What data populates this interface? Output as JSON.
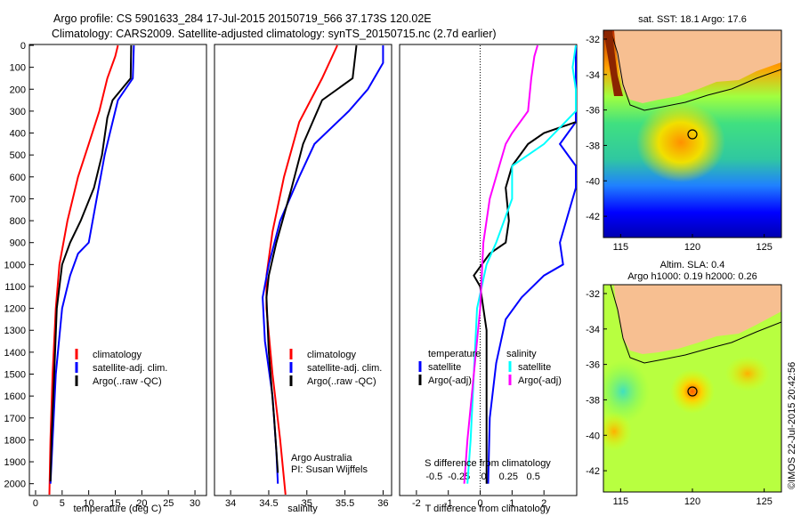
{
  "header": {
    "line1": "Argo profile: CS 5901633_284 17-Jul-2015 20150719_566 37.173S 120.02E",
    "line2": "Climatology: CARS2009. Satellite-adjusted climatology: synTS_20150715.nc (2.7d earlier)"
  },
  "credit": "©IMOS 22-Jul-2015 20:42:56",
  "colors": {
    "climatology": "#ff0000",
    "satellite": "#0000ff",
    "argo": "#000000",
    "sal_sat": "#00ffff",
    "sal_argo": "#ff00ff",
    "land": "#f7bf91"
  },
  "chart_data": [
    {
      "type": "line",
      "name": "temperature-profile",
      "xlabel": "temperature (deg C)",
      "ylim": [
        2050,
        0
      ],
      "xlim": [
        -1,
        32
      ],
      "xticks": [
        "0",
        "5",
        "10",
        "15",
        "20",
        "25",
        "30"
      ],
      "yticks": [
        "0",
        "100",
        "200",
        "300",
        "400",
        "500",
        "600",
        "700",
        "800",
        "900",
        "1000",
        "1100",
        "1200",
        "1300",
        "1400",
        "1500",
        "1600",
        "1700",
        "1800",
        "1900",
        "2000"
      ],
      "legend": {
        "position": "lower-center",
        "entries": [
          "climatology",
          "satellite-adj. clim.",
          "Argo(..raw -QC)"
        ]
      },
      "series": [
        {
          "name": "climatology",
          "color": "#ff0000",
          "points": [
            [
              15.5,
              0
            ],
            [
              15.0,
              50
            ],
            [
              13.5,
              150
            ],
            [
              12.0,
              300
            ],
            [
              10.0,
              450
            ],
            [
              8.0,
              600
            ],
            [
              6.0,
              800
            ],
            [
              4.5,
              1000
            ],
            [
              3.8,
              1200
            ],
            [
              3.2,
              1500
            ],
            [
              2.8,
              1800
            ],
            [
              2.6,
              2050
            ]
          ]
        },
        {
          "name": "satellite-adj. clim.",
          "color": "#0000ff",
          "points": [
            [
              18.5,
              0
            ],
            [
              18.3,
              150
            ],
            [
              15.5,
              250
            ],
            [
              14.0,
              400
            ],
            [
              13.0,
              500
            ],
            [
              11.5,
              700
            ],
            [
              10.0,
              900
            ],
            [
              8.0,
              950
            ],
            [
              6.5,
              1050
            ],
            [
              5.0,
              1200
            ],
            [
              3.8,
              1500
            ],
            [
              3.2,
              1800
            ],
            [
              2.8,
              2000
            ]
          ]
        },
        {
          "name": "Argo(..raw -QC)",
          "color": "#000000",
          "points": [
            [
              18.0,
              0
            ],
            [
              17.9,
              150
            ],
            [
              14.5,
              250
            ],
            [
              13.5,
              330
            ],
            [
              12.5,
              500
            ],
            [
              11.0,
              650
            ],
            [
              8.5,
              800
            ],
            [
              6.5,
              900
            ],
            [
              5.0,
              1000
            ],
            [
              4.0,
              1200
            ],
            [
              3.5,
              1500
            ],
            [
              3.0,
              1800
            ],
            [
              2.8,
              1990
            ]
          ]
        }
      ]
    },
    {
      "type": "line",
      "name": "salinity-profile",
      "xlabel": "salinity",
      "ylim": [
        2050,
        0
      ],
      "xlim": [
        33.8,
        36.1
      ],
      "xticks": [
        "34",
        "34.5",
        "35",
        "35.5",
        "36"
      ],
      "legend": {
        "position": "lower-right",
        "entries": [
          "climatology",
          "satellite-adj. clim.",
          "Argo(..raw -QC)"
        ]
      },
      "annotation": [
        "Argo Australia",
        "PI: Susan Wijffels"
      ],
      "series": [
        {
          "name": "climatology",
          "color": "#ff0000",
          "points": [
            [
              35.4,
              0
            ],
            [
              35.2,
              150
            ],
            [
              34.9,
              350
            ],
            [
              34.7,
              600
            ],
            [
              34.55,
              850
            ],
            [
              34.47,
              1050
            ],
            [
              34.47,
              1200
            ],
            [
              34.55,
              1500
            ],
            [
              34.65,
              1800
            ],
            [
              34.72,
              2050
            ]
          ]
        },
        {
          "name": "satellite-adj. clim.",
          "color": "#0000ff",
          "points": [
            [
              36.0,
              0
            ],
            [
              36.0,
              80
            ],
            [
              35.8,
              200
            ],
            [
              35.55,
              300
            ],
            [
              35.1,
              450
            ],
            [
              34.9,
              600
            ],
            [
              34.65,
              800
            ],
            [
              34.5,
              1000
            ],
            [
              34.42,
              1150
            ],
            [
              34.45,
              1350
            ],
            [
              34.55,
              1600
            ],
            [
              34.6,
              1850
            ],
            [
              34.62,
              2000
            ]
          ]
        },
        {
          "name": "Argo(..raw -QC)",
          "color": "#000000",
          "points": [
            [
              35.65,
              0
            ],
            [
              35.6,
              150
            ],
            [
              35.2,
              250
            ],
            [
              34.95,
              450
            ],
            [
              34.8,
              650
            ],
            [
              34.6,
              900
            ],
            [
              34.5,
              1050
            ],
            [
              34.47,
              1150
            ],
            [
              34.5,
              1400
            ],
            [
              34.57,
              1700
            ],
            [
              34.62,
              1950
            ]
          ]
        }
      ]
    },
    {
      "type": "line",
      "name": "difference-profile",
      "xlabel": "T difference from climatology",
      "x2label": "S difference from climatology",
      "ylim": [
        2050,
        0
      ],
      "xlim": [
        -2.5,
        3.0
      ],
      "xticks": [
        "-2",
        "-1",
        "0",
        "1",
        "2"
      ],
      "x2ticks": [
        "-0.5",
        "-0.25",
        "0",
        "0.25",
        "0.5"
      ],
      "legend": {
        "position": "lower-center",
        "groups": [
          {
            "title": "temperature",
            "entries": [
              "satellite",
              "Argo(-adj)"
            ]
          },
          {
            "title": "salinity",
            "entries": [
              "satellite",
              "Argo(-adj)"
            ]
          }
        ]
      },
      "series": [
        {
          "name": "temperature satellite",
          "color": "#0000ff",
          "points": [
            [
              3.0,
              0
            ],
            [
              3.0,
              200
            ],
            [
              3.0,
              350
            ],
            [
              2.5,
              450
            ],
            [
              3.0,
              550
            ],
            [
              3.0,
              650
            ],
            [
              2.8,
              750
            ],
            [
              2.5,
              900
            ],
            [
              2.6,
              1000
            ],
            [
              2.0,
              1050
            ],
            [
              1.3,
              1150
            ],
            [
              0.8,
              1250
            ],
            [
              0.5,
              1450
            ],
            [
              0.3,
              1700
            ],
            [
              0.25,
              2000
            ]
          ]
        },
        {
          "name": "temperature Argo(-adj)",
          "color": "#000000",
          "points": [
            [
              3.0,
              350
            ],
            [
              2.0,
              400
            ],
            [
              1.5,
              450
            ],
            [
              1.0,
              550
            ],
            [
              0.8,
              650
            ],
            [
              0.9,
              800
            ],
            [
              0.8,
              900
            ],
            [
              0.3,
              950
            ],
            [
              -0.2,
              1050
            ],
            [
              0.0,
              1100
            ],
            [
              0.2,
              1300
            ],
            [
              0.2,
              1500
            ],
            [
              0.2,
              1700
            ],
            [
              0.2,
              2000
            ]
          ]
        },
        {
          "name": "salinity satellite",
          "color": "#00ffff",
          "points": [
            [
              3.0,
              0
            ],
            [
              2.9,
              100
            ],
            [
              3.0,
              200
            ],
            [
              3.0,
              300
            ],
            [
              2.0,
              450
            ],
            [
              1.0,
              550
            ],
            [
              1.0,
              700
            ],
            [
              0.5,
              900
            ],
            [
              0.2,
              1000
            ],
            [
              -0.1,
              1200
            ],
            [
              -0.2,
              1500
            ],
            [
              -0.3,
              1800
            ],
            [
              -0.4,
              2000
            ]
          ]
        },
        {
          "name": "salinity Argo(-adj)",
          "color": "#ff00ff",
          "points": [
            [
              1.8,
              0
            ],
            [
              1.7,
              50
            ],
            [
              1.6,
              150
            ],
            [
              1.5,
              300
            ],
            [
              1.0,
              400
            ],
            [
              0.8,
              450
            ],
            [
              0.6,
              550
            ],
            [
              0.3,
              700
            ],
            [
              0.1,
              900
            ],
            [
              0.0,
              1200
            ],
            [
              -0.2,
              1500
            ],
            [
              -0.4,
              1800
            ],
            [
              -0.5,
              2000
            ]
          ]
        }
      ]
    },
    {
      "type": "heatmap",
      "name": "sst-map",
      "title": "sat. SST: 18.1  Argo: 17.6",
      "xticks": [
        "115",
        "120",
        "125"
      ],
      "yticks": [
        "-32",
        "-34",
        "-36",
        "-38",
        "-40",
        "-42"
      ],
      "xlim": [
        113.8,
        126.2
      ],
      "ylim": [
        -43.2,
        -31.5
      ],
      "marker": {
        "lon": 120.02,
        "lat": -37.173
      }
    },
    {
      "type": "heatmap",
      "name": "sla-map",
      "title": "Altim. SLA: 0.4",
      "subtitle": "Argo h1000: 0.19 h2000: 0.26",
      "xticks": [
        "115",
        "120",
        "125"
      ],
      "yticks": [
        "-32",
        "-34",
        "-36",
        "-38",
        "-40",
        "-42"
      ],
      "xlim": [
        113.8,
        126.2
      ],
      "ylim": [
        -43.2,
        -31.5
      ],
      "marker": {
        "lon": 120.02,
        "lat": -37.173
      }
    }
  ]
}
